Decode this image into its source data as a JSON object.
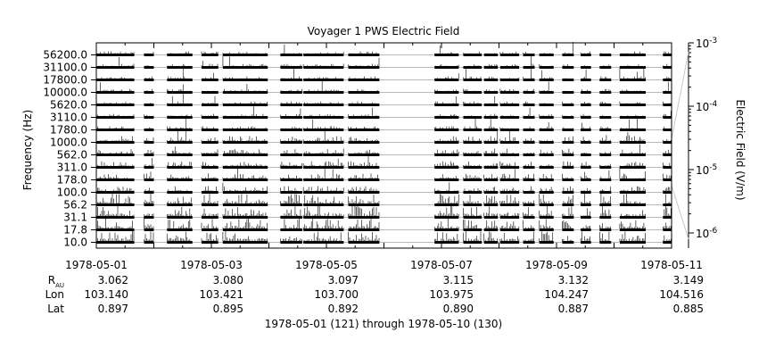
{
  "chart_data": {
    "type": "line",
    "title": "Voyager 1 PWS Electric Field",
    "ylabel": "Frequency (Hz)",
    "colorbar_label": "Electric Field (V/m)",
    "colorbar_ticks": [
      {
        "base": "10",
        "exp": "-3"
      },
      {
        "base": "10",
        "exp": "-4"
      },
      {
        "base": "10",
        "exp": "-5"
      },
      {
        "base": "10",
        "exp": "-6"
      }
    ],
    "frequency_channels": [
      "10.0",
      "17.8",
      "31.1",
      "56.2",
      "100.0",
      "178.0",
      "311.0",
      "562.0",
      "1000.0",
      "1780.0",
      "3110.0",
      "5620.0",
      "10000.0",
      "17800.0",
      "31100.0",
      "56200.0"
    ],
    "x_ticks": [
      "1978-05-01",
      "1978-05-03",
      "1978-05-05",
      "1978-05-07",
      "1978-05-09",
      "1978-05-11"
    ],
    "xlim_days": [
      0,
      10
    ],
    "data_segments_days": [
      [
        0.0,
        0.66
      ],
      [
        0.83,
        1.0
      ],
      [
        1.23,
        1.67
      ],
      [
        1.83,
        2.12
      ],
      [
        2.2,
        2.98
      ],
      [
        3.2,
        3.58
      ],
      [
        3.6,
        4.3
      ],
      [
        4.38,
        4.92
      ],
      [
        5.88,
        6.3
      ],
      [
        6.38,
        6.7
      ],
      [
        6.74,
        6.98
      ],
      [
        7.02,
        7.35
      ],
      [
        7.42,
        7.62
      ],
      [
        7.7,
        7.95
      ],
      [
        8.1,
        8.3
      ],
      [
        8.42,
        8.6
      ],
      [
        8.75,
        8.95
      ],
      [
        9.1,
        9.55
      ],
      [
        9.85,
        10.0
      ]
    ],
    "ephemeris_labels": {
      "r": "R",
      "r_sub": "AU",
      "lon": "Lon",
      "lat": "Lat"
    },
    "ephemeris": {
      "R_AU": [
        "3.062",
        "3.080",
        "3.097",
        "3.115",
        "3.132",
        "3.149"
      ],
      "Lon": [
        "103.140",
        "103.421",
        "103.700",
        "103.975",
        "104.247",
        "104.516"
      ],
      "Lat": [
        "0.897",
        "0.895",
        "0.892",
        "0.890",
        "0.887",
        "0.885"
      ]
    },
    "footer": "1978-05-01 (121) through 1978-05-10 (130)",
    "colors": {
      "trace": "#000000",
      "band_line": "#b8b8b8",
      "gap_line": "#c8c8c8",
      "frame": "#000000"
    }
  }
}
